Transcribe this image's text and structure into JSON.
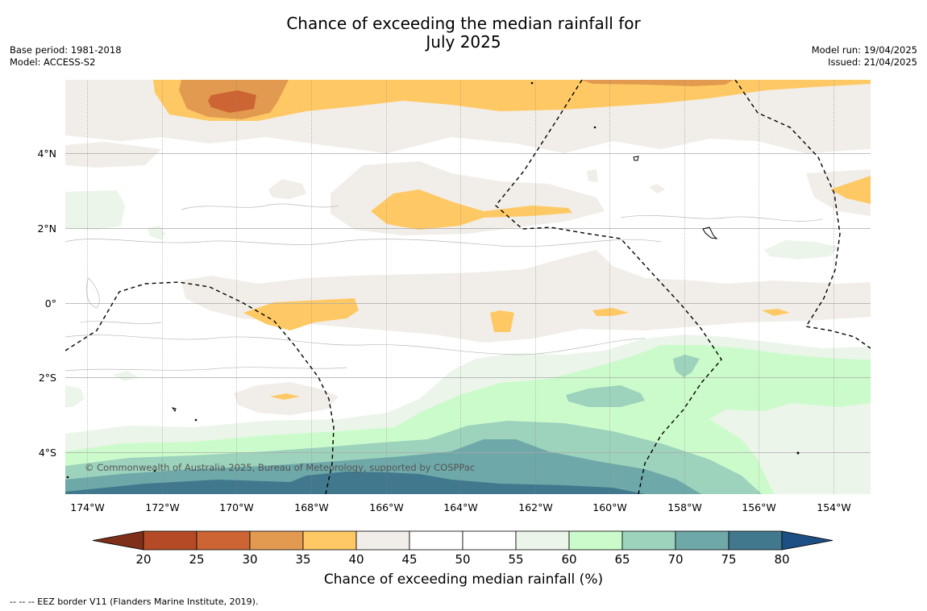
{
  "title_line1": "Chance of exceeding the median rainfall for",
  "title_line2": "July 2025",
  "left_info": {
    "base_period": "Base period: 1981-2018",
    "model": "Model: ACCESS-S2"
  },
  "right_info": {
    "model_run": "Model run: 19/04/2025",
    "issued": "Issued: 21/04/2025"
  },
  "copyright": "© Commonwealth of Australia 2025, Bureau of Meteorology, supported by COSPPac",
  "x_ticks": [
    "174°W",
    "172°W",
    "170°W",
    "168°W",
    "166°W",
    "164°W",
    "162°W",
    "160°W",
    "158°W",
    "156°W",
    "154°W"
  ],
  "y_ticks": [
    "4°N",
    "2°N",
    "0°",
    "2°S",
    "4°S"
  ],
  "colorbar": {
    "title": "Chance of exceeding median rainfall (%)",
    "tick_labels": [
      "20",
      "25",
      "30",
      "35",
      "40",
      "45",
      "50",
      "55",
      "60",
      "65",
      "70",
      "75",
      "80"
    ],
    "colors": [
      "#7f2f19",
      "#b44a26",
      "#cc6533",
      "#e19a50",
      "#fec964",
      "#f1ede8",
      "#ffffff",
      "#ffffff",
      "#ebf5ea",
      "#ccfbcb",
      "#9dd2bc",
      "#6ea8a9",
      "#41788e",
      "#1d4f84"
    ]
  },
  "footer": "-- -- -- EEZ border V11 (Flanders Marine Institute, 2019)."
}
